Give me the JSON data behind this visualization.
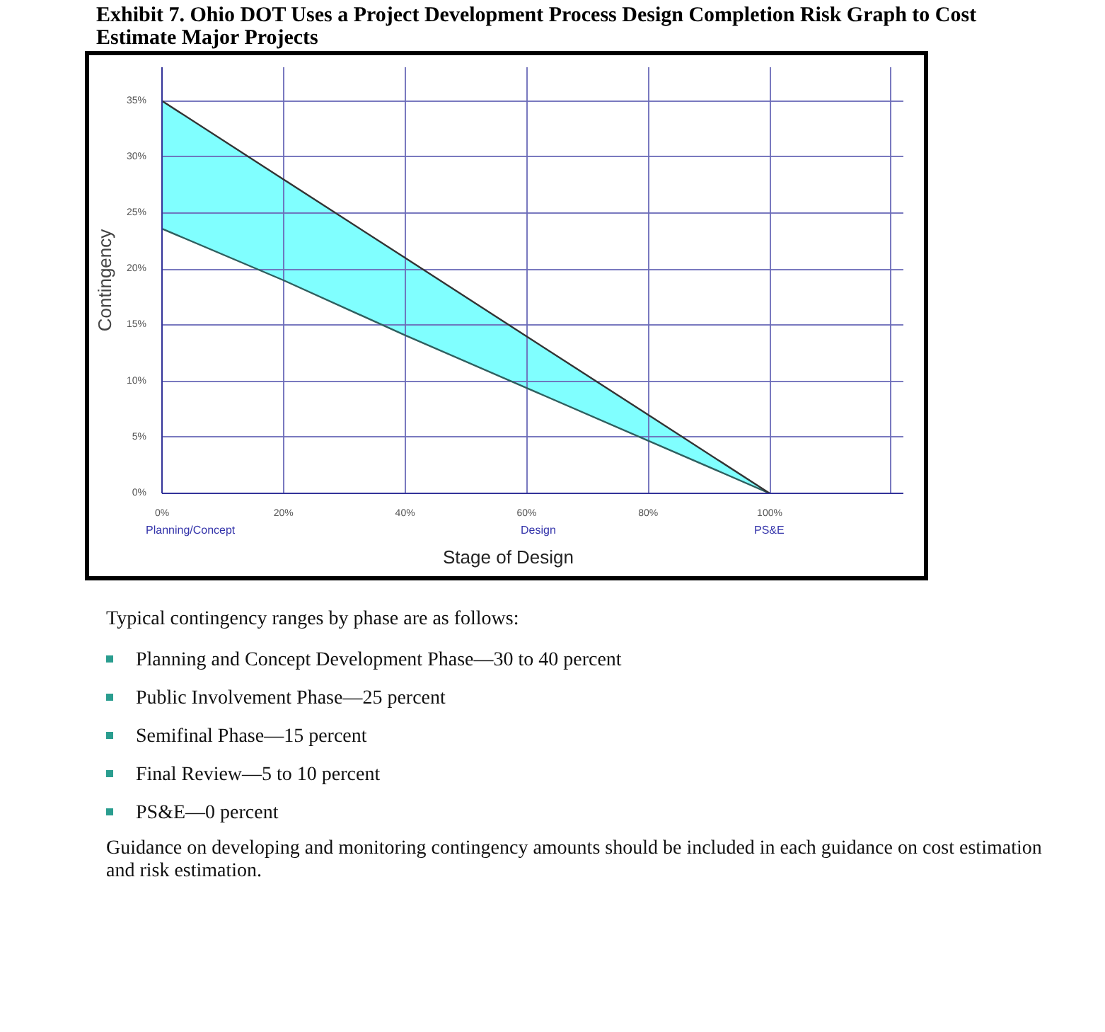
{
  "chart_data": {
    "type": "line",
    "title": "Exhibit 7. Ohio DOT Uses a Project Development Process Design Completion Risk Graph to Cost Estimate Major Projects",
    "xlabel": "Stage of Design",
    "ylabel": "Contingency",
    "x": [
      0,
      20,
      40,
      60,
      80,
      100
    ],
    "series": [
      {
        "color": "#2f5f5f",
        "values": [
          23.6,
          19,
          14.1,
          9.4,
          4.7,
          0
        ]
      },
      {
        "color": "#333333",
        "values": [
          35,
          28,
          21,
          14,
          7,
          0
        ],
        "lower": [
          23.6,
          19,
          14.1,
          9.4,
          4.7,
          0
        ],
        "upper": [
          35,
          28,
          21,
          14,
          7,
          0
        ]
      }
    ],
    "xlim": [
      0,
      122
    ],
    "ylim": [
      0,
      38
    ],
    "xticks": [
      {
        "value": 0,
        "label": "0%"
      },
      {
        "value": 20,
        "label": "20%"
      },
      {
        "value": 40,
        "label": "40%"
      },
      {
        "value": 60,
        "label": "60%"
      },
      {
        "value": 80,
        "label": "80%"
      },
      {
        "value": 100,
        "label": "100%"
      },
      {
        "value": 120,
        "label": null
      }
    ],
    "yticks": [
      {
        "value": 0,
        "label": "0%"
      },
      {
        "value": 5,
        "label": "5%"
      },
      {
        "value": 10,
        "label": "10%"
      },
      {
        "value": 15,
        "label": "15%"
      },
      {
        "value": 20,
        "label": "20%"
      },
      {
        "value": 25,
        "label": "25%"
      },
      {
        "value": 30,
        "label": "30%"
      },
      {
        "value": 35,
        "label": "35%"
      }
    ],
    "grid": true,
    "annotations": [
      "Planning/Concept",
      "Design",
      "PS&E",
      "Typical contingency ranges by phase are as follows:",
      "Planning and Concept Development Phase—30 to 40 percent",
      "Public Involvement Phase—25 percent",
      "Semifinal Phase—15 percent",
      "Final Review—5 to 10 percent",
      "PS&E—0 percent",
      "Guidance on developing and monitoring contingency amounts should be included in each guidance on cost estimation and risk estimation."
    ]
  }
}
